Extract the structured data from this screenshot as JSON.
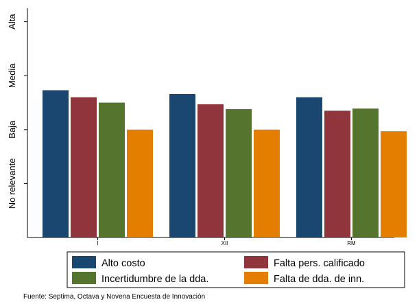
{
  "chart_data": {
    "type": "bar",
    "categories": [
      "I",
      "XII",
      "RM"
    ],
    "series": [
      {
        "name": "Alto costo",
        "color": "#1a476f",
        "values": [
          2.73,
          2.66,
          2.6
        ]
      },
      {
        "name": "Falta pers. calificado",
        "color": "#90353b",
        "values": [
          2.6,
          2.47,
          2.35
        ]
      },
      {
        "name": "Incertidumbre de la dda.",
        "color": "#55752f",
        "values": [
          2.5,
          2.38,
          2.39
        ]
      },
      {
        "name": "Falta de dda. de inn.",
        "color": "#e37e00",
        "values": [
          2.0,
          2.0,
          1.97
        ]
      }
    ],
    "y_ticks": [
      {
        "value": 1,
        "label": "No relevante"
      },
      {
        "value": 2,
        "label": "Baja"
      },
      {
        "value": 3,
        "label": "Media"
      },
      {
        "value": 4,
        "label": "Alta"
      }
    ],
    "ylim": [
      0,
      4.25
    ],
    "legend_placement": "bottom",
    "legend_columns": 2,
    "grid": false
  },
  "footnote": "Fuente: Septima, Octava y Novena Encuesta de Innovación"
}
